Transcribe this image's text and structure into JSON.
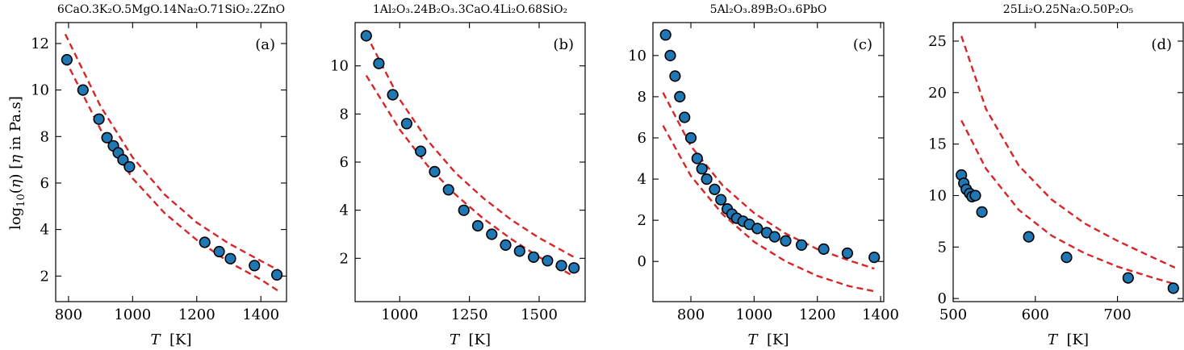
{
  "figure": {
    "ylabel_prefix": "log",
    "ylabel_sub": "10",
    "ylabel_mid": "(",
    "ylabel_eta": "η",
    "ylabel_mid2": ")  [",
    "ylabel_eta2": "η",
    "ylabel_suffix": " in Pa.s]",
    "xlabel_var": "T",
    "xlabel_unit": "  [K]"
  },
  "chart_data": [
    {
      "type": "scatter",
      "title": "6CaO.3K₂O.5MgO.14Na₂O.71SiO₂.2ZnO",
      "panel_label": "(a)",
      "xlim": [
        760,
        1480
      ],
      "ylim": [
        0.9,
        12.9
      ],
      "xticks": [
        800,
        1000,
        1200,
        1400
      ],
      "yticks": [
        2,
        4,
        6,
        8,
        10,
        12
      ],
      "points": [
        [
          795,
          11.3
        ],
        [
          845,
          10.0
        ],
        [
          895,
          8.75
        ],
        [
          920,
          7.95
        ],
        [
          940,
          7.6
        ],
        [
          955,
          7.3
        ],
        [
          970,
          7.0
        ],
        [
          990,
          6.7
        ],
        [
          1225,
          3.45
        ],
        [
          1270,
          3.05
        ],
        [
          1305,
          2.75
        ],
        [
          1380,
          2.45
        ],
        [
          1450,
          2.05
        ]
      ],
      "curves": [
        {
          "x": [
            790,
            900,
            1000,
            1100,
            1200,
            1300,
            1400,
            1455
          ],
          "y": [
            12.4,
            9.3,
            7.1,
            5.5,
            4.3,
            3.4,
            2.65,
            2.25
          ]
        },
        {
          "x": [
            790,
            900,
            1000,
            1100,
            1200,
            1300,
            1400,
            1455
          ],
          "y": [
            11.3,
            8.3,
            6.2,
            4.7,
            3.55,
            2.6,
            1.85,
            1.35
          ]
        }
      ]
    },
    {
      "type": "scatter",
      "title": "1Al₂O₃.24B₂O₃.3CaO.4Li₂O.68SiO₂",
      "panel_label": "(b)",
      "xlim": [
        840,
        1665
      ],
      "ylim": [
        0.2,
        11.8
      ],
      "xticks": [
        1000,
        1250,
        1500
      ],
      "yticks": [
        2,
        4,
        6,
        8,
        10
      ],
      "points": [
        [
          880,
          11.25
        ],
        [
          925,
          10.1
        ],
        [
          975,
          8.8
        ],
        [
          1025,
          7.6
        ],
        [
          1075,
          6.45
        ],
        [
          1125,
          5.6
        ],
        [
          1175,
          4.85
        ],
        [
          1230,
          4.0
        ],
        [
          1280,
          3.35
        ],
        [
          1330,
          3.0
        ],
        [
          1380,
          2.55
        ],
        [
          1430,
          2.3
        ],
        [
          1480,
          2.05
        ],
        [
          1530,
          1.9
        ],
        [
          1580,
          1.7
        ],
        [
          1625,
          1.6
        ]
      ],
      "curves": [
        {
          "x": [
            880,
            1000,
            1100,
            1200,
            1300,
            1400,
            1500,
            1625
          ],
          "y": [
            11.3,
            8.6,
            6.9,
            5.55,
            4.5,
            3.6,
            2.85,
            2.05
          ]
        },
        {
          "x": [
            880,
            1000,
            1100,
            1200,
            1300,
            1400,
            1500,
            1625
          ],
          "y": [
            9.6,
            7.35,
            5.85,
            4.65,
            3.65,
            2.8,
            2.05,
            1.25
          ]
        }
      ]
    },
    {
      "type": "scatter",
      "title": "5Al₂O₃.89B₂O₃.6PbO",
      "panel_label": "(c)",
      "xlim": [
        680,
        1410
      ],
      "ylim": [
        -1.95,
        11.6
      ],
      "xticks": [
        800,
        1000,
        1200,
        1400
      ],
      "yticks": [
        0,
        2,
        4,
        6,
        8,
        10
      ],
      "points": [
        [
          720,
          11.0
        ],
        [
          735,
          10.0
        ],
        [
          750,
          9.0
        ],
        [
          765,
          8.0
        ],
        [
          780,
          7.0
        ],
        [
          800,
          6.0
        ],
        [
          820,
          5.0
        ],
        [
          835,
          4.5
        ],
        [
          850,
          4.0
        ],
        [
          875,
          3.5
        ],
        [
          895,
          3.0
        ],
        [
          915,
          2.55
        ],
        [
          930,
          2.3
        ],
        [
          945,
          2.1
        ],
        [
          965,
          1.95
        ],
        [
          985,
          1.8
        ],
        [
          1010,
          1.6
        ],
        [
          1040,
          1.4
        ],
        [
          1065,
          1.2
        ],
        [
          1100,
          1.0
        ],
        [
          1150,
          0.8
        ],
        [
          1220,
          0.6
        ],
        [
          1295,
          0.4
        ],
        [
          1380,
          0.2
        ]
      ],
      "curves": [
        {
          "x": [
            712,
            800,
            900,
            1000,
            1100,
            1200,
            1300,
            1380
          ],
          "y": [
            8.2,
            5.6,
            3.7,
            2.35,
            1.35,
            0.6,
            0.05,
            -0.35
          ]
        },
        {
          "x": [
            712,
            800,
            900,
            1000,
            1100,
            1200,
            1300,
            1380
          ],
          "y": [
            6.6,
            4.15,
            2.3,
            0.95,
            0.0,
            -0.7,
            -1.2,
            -1.45
          ]
        }
      ]
    },
    {
      "type": "scatter",
      "title": "25Li₂O.25Na₂O.50P₂O₅",
      "panel_label": "(d)",
      "xlim": [
        500,
        780
      ],
      "ylim": [
        -0.3,
        26.8
      ],
      "xticks": [
        500,
        600,
        700
      ],
      "yticks": [
        0,
        5,
        10,
        15,
        20,
        25
      ],
      "points": [
        [
          510,
          12.0
        ],
        [
          513,
          11.2
        ],
        [
          516,
          10.6
        ],
        [
          520,
          10.2
        ],
        [
          523,
          9.9
        ],
        [
          527,
          10.0
        ],
        [
          535,
          8.4
        ],
        [
          592,
          6.0
        ],
        [
          638,
          4.0
        ],
        [
          713,
          2.0
        ],
        [
          768,
          1.0
        ]
      ],
      "curves": [
        {
          "x": [
            510,
            540,
            580,
            620,
            660,
            700,
            740,
            770
          ],
          "y": [
            25.5,
            18.4,
            12.9,
            9.6,
            7.3,
            5.6,
            4.1,
            3.0
          ]
        },
        {
          "x": [
            510,
            540,
            580,
            620,
            660,
            700,
            740,
            770
          ],
          "y": [
            17.3,
            12.6,
            8.6,
            6.1,
            4.4,
            3.1,
            2.1,
            1.4
          ]
        }
      ]
    }
  ]
}
